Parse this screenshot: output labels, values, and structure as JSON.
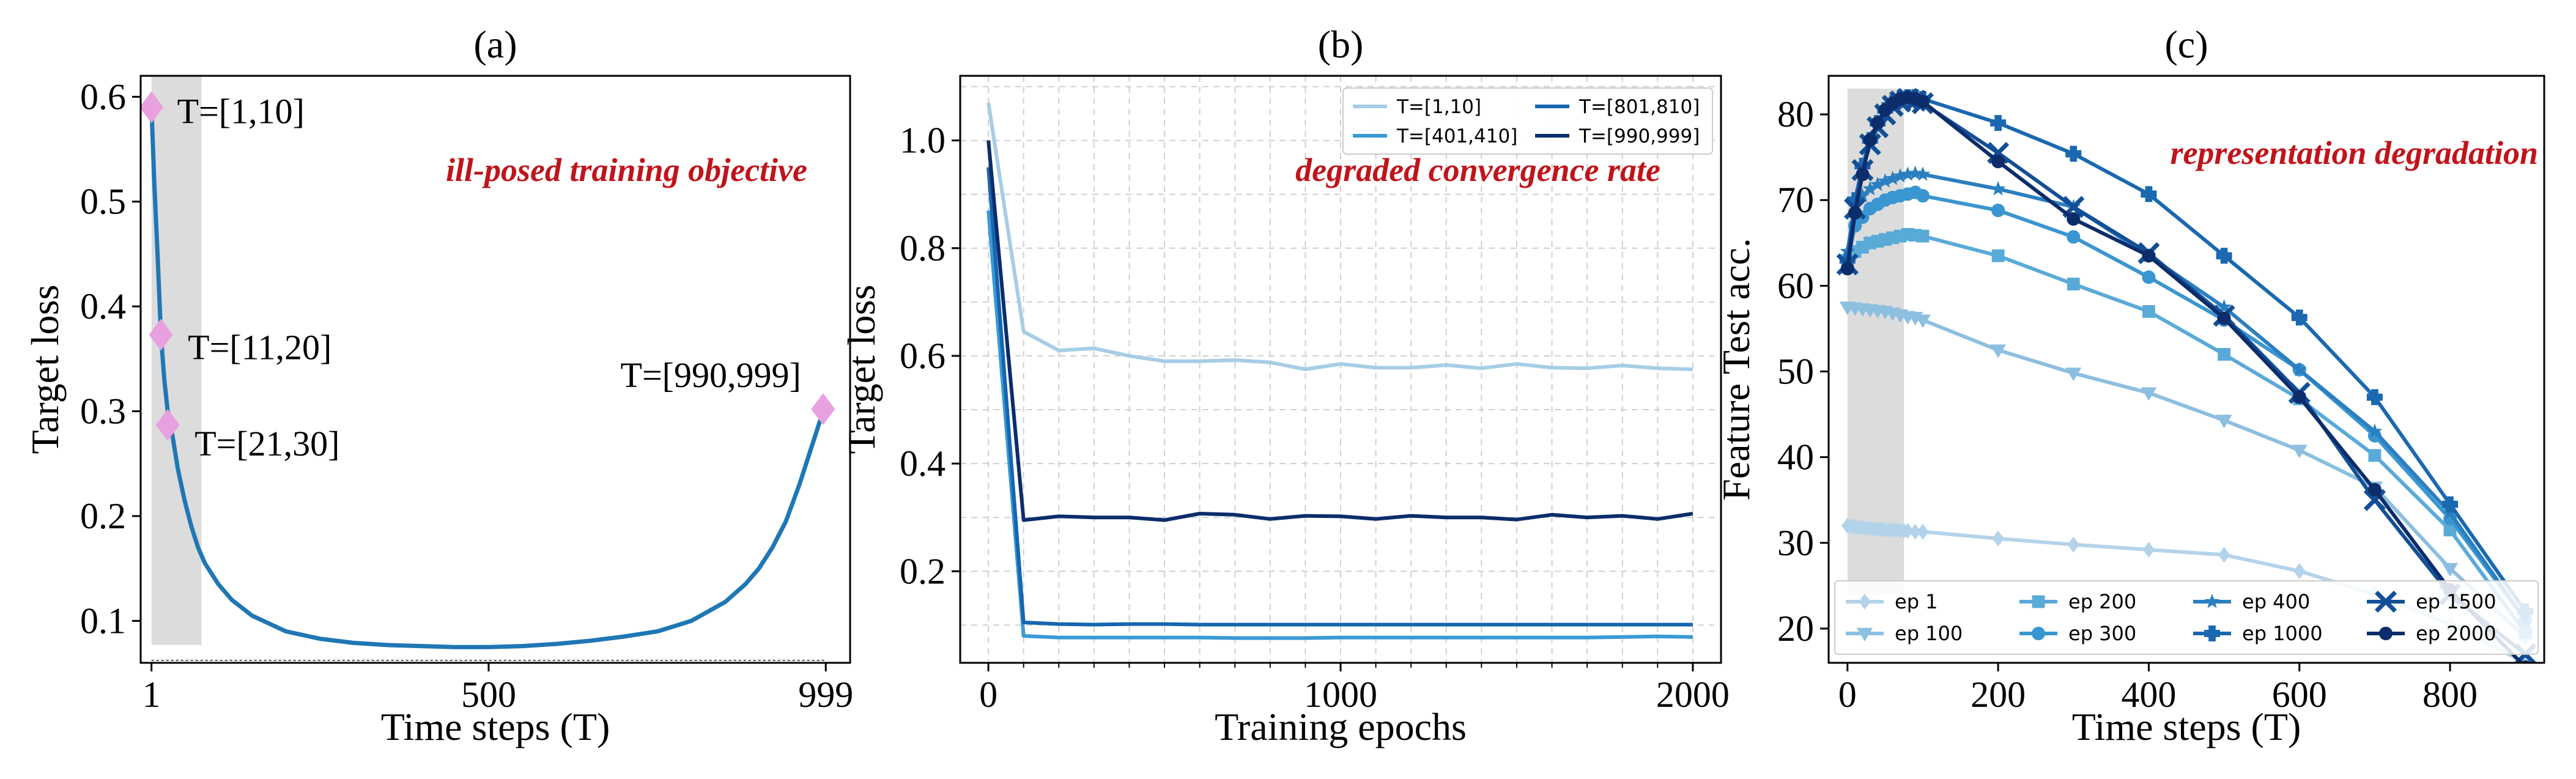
{
  "chart_data": [
    {
      "type": "line",
      "title": "(a)",
      "xlabel": "Time steps (T)",
      "ylabel": "Target loss",
      "xlim": [
        -15,
        1035
      ],
      "ylim": [
        0.06,
        0.62
      ],
      "xticks": [
        {
          "v": 1,
          "label": "1"
        },
        {
          "v": 500,
          "label": "500"
        },
        {
          "v": 999,
          "label": "999"
        }
      ],
      "yticks": [
        0.1,
        0.2,
        0.3,
        0.4,
        0.5,
        0.6
      ],
      "grid": false,
      "shaded_region": {
        "x": [
          1,
          75
        ],
        "y": [
          0.077,
          0.62
        ]
      },
      "annotation": "ill-posed training objective",
      "series": [
        {
          "name": "",
          "color": "#1f77b4",
          "x": [
            1,
            5,
            10,
            15,
            20,
            25,
            30,
            40,
            50,
            60,
            70,
            80,
            100,
            120,
            150,
            200,
            250,
            300,
            350,
            400,
            450,
            500,
            550,
            600,
            650,
            700,
            750,
            800,
            850,
            880,
            900,
            920,
            940,
            960,
            980,
            990,
            999
          ],
          "y": [
            0.59,
            0.52,
            0.45,
            0.373,
            0.33,
            0.3,
            0.285,
            0.245,
            0.215,
            0.19,
            0.17,
            0.155,
            0.135,
            0.12,
            0.105,
            0.09,
            0.083,
            0.079,
            0.077,
            0.076,
            0.075,
            0.075,
            0.076,
            0.078,
            0.081,
            0.085,
            0.09,
            0.1,
            0.118,
            0.135,
            0.15,
            0.17,
            0.195,
            0.23,
            0.27,
            0.29,
            0.302
          ]
        }
      ],
      "markers": [
        {
          "x": 1,
          "y": 0.59,
          "label": "T=[1,10]",
          "color": "#e8a0e0"
        },
        {
          "x": 15,
          "y": 0.373,
          "label": "T=[11,20]",
          "color": "#e8a0e0"
        },
        {
          "x": 25,
          "y": 0.287,
          "label": "T=[21,30]",
          "color": "#e8a0e0"
        },
        {
          "x": 995,
          "y": 0.302,
          "label": "T=[990,999]",
          "color": "#e8a0e0"
        }
      ]
    },
    {
      "type": "line",
      "title": "(b)",
      "xlabel": "Training epochs",
      "ylabel": "Target loss",
      "xlim": [
        -80,
        2080
      ],
      "ylim": [
        0.03,
        1.12
      ],
      "xticks": [
        {
          "v": 0,
          "label": "0"
        },
        {
          "v": 1000,
          "label": "1000"
        },
        {
          "v": 2000,
          "label": "2000"
        }
      ],
      "yticks": [
        0.2,
        0.4,
        0.6,
        0.8,
        1.0
      ],
      "grid": true,
      "legend": "top-right",
      "annotation": "degraded convergence rate",
      "x": [
        0,
        100,
        200,
        300,
        400,
        500,
        600,
        700,
        800,
        900,
        1000,
        1100,
        1200,
        1300,
        1400,
        1500,
        1600,
        1700,
        1800,
        1900,
        2000
      ],
      "series": [
        {
          "name": "T=[1,10]",
          "color": "#a6cde6",
          "values": [
            1.07,
            0.645,
            0.61,
            0.614,
            0.6,
            0.59,
            0.59,
            0.592,
            0.588,
            0.575,
            0.585,
            0.578,
            0.578,
            0.583,
            0.577,
            0.585,
            0.578,
            0.577,
            0.582,
            0.577,
            0.575
          ]
        },
        {
          "name": "T=[401,410]",
          "color": "#3a9ad6",
          "values": [
            0.87,
            0.08,
            0.077,
            0.077,
            0.077,
            0.077,
            0.077,
            0.076,
            0.076,
            0.076,
            0.077,
            0.077,
            0.077,
            0.077,
            0.077,
            0.077,
            0.077,
            0.077,
            0.078,
            0.079,
            0.078
          ]
        },
        {
          "name": "T=[801,810]",
          "color": "#1566b0",
          "values": [
            0.95,
            0.105,
            0.102,
            0.101,
            0.102,
            0.102,
            0.101,
            0.101,
            0.101,
            0.101,
            0.101,
            0.101,
            0.101,
            0.101,
            0.101,
            0.101,
            0.101,
            0.101,
            0.101,
            0.101,
            0.101
          ]
        },
        {
          "name": "T=[990,999]",
          "color": "#0c2d6b",
          "values": [
            1.0,
            0.295,
            0.302,
            0.3,
            0.3,
            0.295,
            0.307,
            0.305,
            0.297,
            0.303,
            0.302,
            0.297,
            0.303,
            0.3,
            0.3,
            0.296,
            0.305,
            0.3,
            0.303,
            0.297,
            0.307
          ]
        }
      ]
    },
    {
      "type": "line",
      "title": "(c)",
      "xlabel": "Time steps (T)",
      "ylabel": "Feature Test acc.",
      "xlim": [
        -25,
        925
      ],
      "ylim": [
        16,
        84.5
      ],
      "xticks": [
        {
          "v": 0,
          "label": "0"
        },
        {
          "v": 200,
          "label": "200"
        },
        {
          "v": 400,
          "label": "400"
        },
        {
          "v": 600,
          "label": "600"
        },
        {
          "v": 800,
          "label": "800"
        }
      ],
      "yticks": [
        20,
        30,
        40,
        50,
        60,
        70,
        80
      ],
      "grid": false,
      "legend": "bottom",
      "shaded_region": {
        "x": [
          0,
          75
        ],
        "y": [
          24,
          83
        ]
      },
      "annotation": "representation degradation",
      "series": [
        {
          "name": "ep 1",
          "color": "#b3d3ea",
          "marker": "diamond",
          "x": [
            0,
            5,
            10,
            15,
            20,
            25,
            30,
            35,
            40,
            45,
            50,
            55,
            60,
            65,
            70,
            75,
            80,
            90,
            100,
            200,
            300,
            400,
            500,
            600,
            700,
            800,
            900
          ],
          "y": [
            32,
            31.9,
            31.9,
            31.8,
            31.8,
            31.7,
            31.7,
            31.6,
            31.6,
            31.6,
            31.5,
            31.5,
            31.5,
            31.5,
            31.4,
            31.4,
            31.4,
            31.3,
            31.3,
            30.5,
            29.8,
            29.2,
            28.6,
            26.7,
            24,
            20.5,
            16
          ]
        },
        {
          "name": "ep 100",
          "color": "#8cbfe0",
          "marker": "triangle-down",
          "x": [
            0,
            10,
            20,
            30,
            40,
            50,
            60,
            70,
            80,
            90,
            100,
            200,
            300,
            400,
            500,
            600,
            700,
            800,
            900
          ],
          "y": [
            57.5,
            57.4,
            57.3,
            57.2,
            57.1,
            57,
            56.8,
            56.6,
            56.4,
            56.3,
            56,
            52.5,
            49.8,
            47.5,
            44.3,
            40.8,
            36.5,
            27,
            19
          ]
        },
        {
          "name": "ep 200",
          "color": "#5aaad8",
          "marker": "square",
          "x": [
            0,
            10,
            20,
            30,
            40,
            50,
            60,
            70,
            80,
            90,
            100,
            200,
            300,
            400,
            500,
            600,
            700,
            800,
            900
          ],
          "y": [
            63,
            64,
            64.5,
            65,
            65.2,
            65.4,
            65.6,
            65.8,
            66,
            65.9,
            65.8,
            63.5,
            60.2,
            57,
            52,
            46.8,
            40.2,
            31.5,
            19.5
          ]
        },
        {
          "name": "ep 300",
          "color": "#3a96d0",
          "marker": "circle",
          "x": [
            0,
            10,
            20,
            30,
            40,
            50,
            60,
            70,
            80,
            90,
            100,
            200,
            300,
            400,
            500,
            600,
            700,
            800,
            900
          ],
          "y": [
            63,
            67,
            68,
            69,
            69.5,
            70,
            70.3,
            70.5,
            70.7,
            70.9,
            70.5,
            68.8,
            65.7,
            61,
            56,
            50.2,
            42.5,
            32.8,
            21
          ]
        },
        {
          "name": "ep 400",
          "color": "#2a7fc0",
          "marker": "star",
          "x": [
            0,
            10,
            20,
            30,
            40,
            50,
            60,
            70,
            80,
            90,
            100,
            200,
            300,
            400,
            500,
            600,
            700,
            800,
            900
          ],
          "y": [
            64,
            69.5,
            70.5,
            71.3,
            71.8,
            72.2,
            72.5,
            72.8,
            73,
            73.1,
            73,
            71.3,
            69.2,
            63.5,
            57.5,
            50.2,
            43,
            33.5,
            21
          ]
        },
        {
          "name": "ep 1000",
          "color": "#1a68b0",
          "marker": "plus",
          "x": [
            0,
            10,
            20,
            30,
            40,
            50,
            60,
            70,
            80,
            90,
            100,
            200,
            300,
            400,
            500,
            600,
            700,
            800,
            900
          ],
          "y": [
            63,
            70,
            74,
            77,
            79,
            80.5,
            81.3,
            81.8,
            82,
            82,
            81.8,
            79,
            75.4,
            70.7,
            63.5,
            56.3,
            47,
            34.5,
            22
          ]
        },
        {
          "name": "ep 1500",
          "color": "#124f96",
          "marker": "x",
          "x": [
            0,
            10,
            20,
            30,
            40,
            50,
            60,
            70,
            80,
            90,
            100,
            200,
            300,
            400,
            500,
            600,
            700,
            800,
            900
          ],
          "y": [
            62.5,
            69,
            73.5,
            76.5,
            78.5,
            80,
            81,
            81.5,
            81.8,
            81.6,
            81.3,
            75.5,
            69.2,
            63.8,
            56.5,
            47.5,
            35,
            24,
            17
          ]
        },
        {
          "name": "ep 2000",
          "color": "#0c2d6b",
          "marker": "circle",
          "x": [
            0,
            10,
            20,
            30,
            40,
            50,
            60,
            70,
            80,
            90,
            100,
            200,
            300,
            400,
            500,
            600,
            700,
            800,
            900
          ],
          "y": [
            62,
            68.5,
            73,
            77,
            79,
            80.5,
            81.3,
            81.8,
            82,
            81.8,
            81.5,
            74.5,
            67.8,
            63.5,
            56.2,
            47,
            36.2,
            24.5,
            15.5
          ]
        }
      ]
    }
  ]
}
